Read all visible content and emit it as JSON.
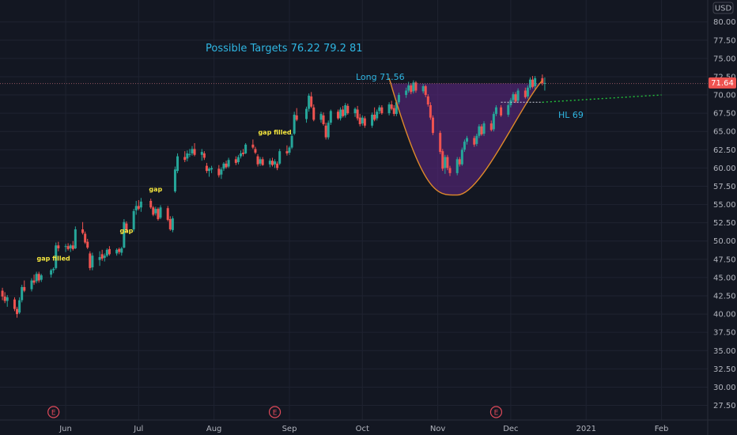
{
  "currency_badge": "USD",
  "price_tag": "71.64",
  "colors": {
    "up": "#26a69a",
    "down": "#ef5350",
    "grid": "#1f2331",
    "cup_fill": "#5b2680",
    "cup_line": "#e08a2a",
    "annotation": "#2fb6e2",
    "gap_label": "#f5e63d",
    "trend": "#23c23b"
  },
  "annotations": {
    "targets": "Possible Targets  76.22  79.2  81",
    "long": "Long  71.56",
    "hl": "HL 69"
  },
  "gap_labels": [
    {
      "text": "gap filled",
      "date": "2020-05-27",
      "price": 47.3
    },
    {
      "text": "gap",
      "date": "2020-06-26",
      "price": 51.1
    },
    {
      "text": "gap",
      "date": "2020-07-08",
      "price": 56.8
    },
    {
      "text": "gap filled",
      "date": "2020-08-26",
      "price": 64.6
    }
  ],
  "earnings_markers": [
    {
      "label": "E",
      "date": "2020-05-27"
    },
    {
      "label": "E",
      "date": "2020-08-26"
    },
    {
      "label": "E",
      "date": "2020-11-25"
    }
  ],
  "chart_data": {
    "type": "candlestick",
    "title": "",
    "xlabel": "",
    "ylabel": "",
    "x_range": [
      "2020-05-05",
      "2021-02-20"
    ],
    "ylim": [
      25.5,
      83
    ],
    "y_ticks": [
      "27.50",
      "30.00",
      "32.50",
      "35.00",
      "37.50",
      "40.00",
      "42.50",
      "45.00",
      "47.50",
      "50.00",
      "52.50",
      "55.00",
      "57.50",
      "60.00",
      "62.50",
      "65.00",
      "67.50",
      "70.00",
      "72.50",
      "75.00",
      "77.50",
      "80.00"
    ],
    "x_ticks": [
      {
        "label": "Jun",
        "date": "2020-06-01"
      },
      {
        "label": "Jul",
        "date": "2020-07-01"
      },
      {
        "label": "Aug",
        "date": "2020-08-01"
      },
      {
        "label": "Sep",
        "date": "2020-09-01"
      },
      {
        "label": "Oct",
        "date": "2020-10-01"
      },
      {
        "label": "Nov",
        "date": "2020-11-01"
      },
      {
        "label": "Dec",
        "date": "2020-12-01"
      },
      {
        "label": "2021",
        "date": "2021-01-01"
      },
      {
        "label": "Feb",
        "date": "2021-02-01"
      }
    ],
    "grid": true,
    "last_price": 71.64,
    "candles": [
      [
        "2020-05-06",
        43.2,
        43.6,
        41.9,
        42.4
      ],
      [
        "2020-05-07",
        42.4,
        43.0,
        41.5,
        41.8
      ],
      [
        "2020-05-08",
        41.8,
        42.6,
        41.0,
        42.3
      ],
      [
        "2020-05-11",
        42.0,
        42.3,
        40.4,
        40.7
      ],
      [
        "2020-05-12",
        40.7,
        41.0,
        39.5,
        40.0
      ],
      [
        "2020-05-13",
        40.2,
        42.3,
        40.0,
        41.9
      ],
      [
        "2020-05-14",
        41.9,
        44.0,
        41.6,
        43.7
      ],
      [
        "2020-05-15",
        43.7,
        44.6,
        43.0,
        43.2
      ],
      [
        "2020-05-18",
        43.4,
        44.9,
        43.1,
        44.6
      ],
      [
        "2020-05-19",
        44.6,
        45.4,
        44.0,
        44.3
      ],
      [
        "2020-05-20",
        44.5,
        45.8,
        44.2,
        45.5
      ],
      [
        "2020-05-21",
        45.5,
        45.8,
        44.3,
        44.6
      ],
      [
        "2020-05-22",
        44.7,
        45.5,
        44.4,
        45.3
      ],
      [
        "2020-05-26",
        45.4,
        46.2,
        45.0,
        46.0
      ],
      [
        "2020-05-27",
        46.0,
        46.4,
        45.6,
        46.2
      ],
      [
        "2020-05-28",
        46.3,
        49.8,
        46.1,
        49.4
      ],
      [
        "2020-05-29",
        49.4,
        49.9,
        48.6,
        49.0
      ],
      [
        "2020-06-01",
        49.2,
        49.6,
        48.5,
        49.3
      ],
      [
        "2020-06-02",
        49.3,
        49.7,
        48.7,
        48.9
      ],
      [
        "2020-06-03",
        49.0,
        49.6,
        48.5,
        49.4
      ],
      [
        "2020-06-04",
        49.4,
        50.0,
        48.7,
        48.9
      ],
      [
        "2020-06-05",
        49.0,
        52.0,
        48.9,
        51.6
      ],
      [
        "2020-06-08",
        51.6,
        52.6,
        50.9,
        51.1
      ],
      [
        "2020-06-09",
        51.0,
        51.3,
        49.6,
        49.8
      ],
      [
        "2020-06-10",
        49.9,
        50.3,
        48.9,
        49.1
      ],
      [
        "2020-06-11",
        48.3,
        48.6,
        46.0,
        46.3
      ],
      [
        "2020-06-12",
        46.4,
        48.4,
        46.0,
        48.0
      ],
      [
        "2020-06-15",
        47.4,
        48.6,
        46.6,
        47.8
      ],
      [
        "2020-06-16",
        48.2,
        48.8,
        47.3,
        47.6
      ],
      [
        "2020-06-17",
        47.7,
        48.3,
        47.2,
        48.0
      ],
      [
        "2020-06-18",
        48.0,
        49.0,
        47.8,
        48.8
      ],
      [
        "2020-06-19",
        48.9,
        49.3,
        48.0,
        48.2
      ],
      [
        "2020-06-22",
        48.3,
        49.0,
        48.0,
        48.8
      ],
      [
        "2020-06-23",
        48.9,
        49.1,
        48.2,
        48.5
      ],
      [
        "2020-06-24",
        48.4,
        49.2,
        48.0,
        49.0
      ],
      [
        "2020-06-25",
        49.1,
        53.0,
        49.0,
        52.6
      ],
      [
        "2020-06-26",
        52.4,
        52.7,
        51.2,
        51.5
      ],
      [
        "2020-06-29",
        51.6,
        54.4,
        51.3,
        54.1
      ],
      [
        "2020-06-30",
        54.2,
        55.5,
        53.6,
        54.8
      ],
      [
        "2020-07-01",
        54.8,
        55.6,
        54.2,
        54.4
      ],
      [
        "2020-07-02",
        54.6,
        55.9,
        54.0,
        55.4
      ],
      [
        "2020-07-06",
        55.5,
        55.8,
        54.4,
        54.6
      ],
      [
        "2020-07-07",
        54.6,
        54.8,
        53.4,
        53.6
      ],
      [
        "2020-07-08",
        53.8,
        54.7,
        53.5,
        54.4
      ],
      [
        "2020-07-09",
        54.4,
        54.6,
        52.8,
        53.0
      ],
      [
        "2020-07-10",
        53.2,
        54.9,
        53.0,
        54.6
      ],
      [
        "2020-07-13",
        54.5,
        54.8,
        52.7,
        52.9
      ],
      [
        "2020-07-14",
        53.0,
        53.4,
        51.4,
        51.6
      ],
      [
        "2020-07-15",
        51.5,
        53.4,
        51.2,
        53.1
      ],
      [
        "2020-07-16",
        56.8,
        60.2,
        56.6,
        59.8
      ],
      [
        "2020-07-17",
        59.6,
        62.0,
        59.3,
        61.6
      ],
      [
        "2020-07-20",
        61.5,
        62.3,
        60.8,
        61.1
      ],
      [
        "2020-07-21",
        61.3,
        62.4,
        60.9,
        62.0
      ],
      [
        "2020-07-22",
        61.8,
        62.6,
        61.5,
        61.9
      ],
      [
        "2020-07-23",
        62.0,
        63.0,
        61.7,
        62.6
      ],
      [
        "2020-07-24",
        62.6,
        63.4,
        61.6,
        61.8
      ],
      [
        "2020-07-27",
        61.8,
        62.6,
        61.0,
        62.2
      ],
      [
        "2020-07-28",
        62.0,
        62.3,
        61.1,
        61.4
      ],
      [
        "2020-07-29",
        60.3,
        60.7,
        59.3,
        59.6
      ],
      [
        "2020-07-30",
        59.6,
        60.1,
        58.8,
        59.9
      ],
      [
        "2020-07-31",
        59.8,
        60.3,
        59.3,
        60.0
      ],
      [
        "2020-08-03",
        59.9,
        60.4,
        58.7,
        59.0
      ],
      [
        "2020-08-04",
        59.1,
        60.1,
        58.5,
        59.8
      ],
      [
        "2020-08-05",
        59.9,
        60.8,
        59.6,
        60.6
      ],
      [
        "2020-08-06",
        60.6,
        61.0,
        59.9,
        60.1
      ],
      [
        "2020-08-07",
        60.2,
        61.4,
        60.0,
        61.1
      ],
      [
        "2020-08-10",
        61.2,
        61.6,
        60.4,
        60.7
      ],
      [
        "2020-08-11",
        60.8,
        61.8,
        60.5,
        61.5
      ],
      [
        "2020-08-12",
        61.6,
        62.4,
        61.3,
        62.0
      ],
      [
        "2020-08-13",
        62.1,
        62.6,
        61.6,
        61.9
      ],
      [
        "2020-08-14",
        62.0,
        63.4,
        61.9,
        63.2
      ],
      [
        "2020-08-17",
        63.2,
        63.9,
        62.6,
        62.8
      ],
      [
        "2020-08-18",
        62.6,
        62.9,
        61.9,
        62.1
      ],
      [
        "2020-08-19",
        61.6,
        61.9,
        60.2,
        60.5
      ],
      [
        "2020-08-20",
        60.6,
        61.5,
        60.3,
        61.2
      ],
      [
        "2020-08-21",
        61.2,
        61.5,
        60.3,
        60.4
      ],
      [
        "2020-08-24",
        60.5,
        61.3,
        60.1,
        61.0
      ],
      [
        "2020-08-25",
        61.0,
        61.4,
        60.2,
        60.4
      ],
      [
        "2020-08-26",
        60.5,
        61.2,
        60.0,
        60.9
      ],
      [
        "2020-08-27",
        60.6,
        60.9,
        59.7,
        60.0
      ],
      [
        "2020-08-28",
        60.6,
        62.6,
        60.4,
        62.3
      ],
      [
        "2020-08-31",
        62.3,
        63.1,
        61.7,
        62.0
      ],
      [
        "2020-09-01",
        62.1,
        63.0,
        61.8,
        62.8
      ],
      [
        "2020-09-02",
        62.8,
        64.7,
        62.6,
        64.4
      ],
      [
        "2020-09-03",
        64.7,
        67.7,
        64.5,
        67.3
      ],
      [
        "2020-09-04",
        67.2,
        68.2,
        66.4,
        66.6
      ],
      [
        "2020-09-08",
        66.7,
        68.4,
        66.2,
        68.1
      ],
      [
        "2020-09-09",
        68.1,
        70.2,
        67.7,
        69.9
      ],
      [
        "2020-09-10",
        69.8,
        70.4,
        68.2,
        68.4
      ],
      [
        "2020-09-11",
        68.3,
        68.7,
        66.4,
        66.6
      ],
      [
        "2020-09-14",
        66.6,
        67.7,
        66.2,
        67.4
      ],
      [
        "2020-09-15",
        67.2,
        67.6,
        65.8,
        66.0
      ],
      [
        "2020-09-16",
        65.8,
        66.2,
        63.9,
        64.2
      ],
      [
        "2020-09-17",
        64.2,
        66.5,
        63.9,
        66.2
      ],
      [
        "2020-09-18",
        66.2,
        68.0,
        65.9,
        67.8
      ],
      [
        "2020-09-21",
        67.7,
        68.0,
        66.6,
        66.8
      ],
      [
        "2020-09-22",
        66.8,
        68.3,
        66.5,
        68.0
      ],
      [
        "2020-09-23",
        68.0,
        68.5,
        66.9,
        67.1
      ],
      [
        "2020-09-24",
        67.2,
        68.9,
        66.9,
        68.6
      ],
      [
        "2020-09-25",
        68.5,
        68.8,
        67.3,
        67.5
      ],
      [
        "2020-09-28",
        67.5,
        68.3,
        67.0,
        68.1
      ],
      [
        "2020-09-29",
        68.0,
        68.5,
        66.5,
        66.8
      ],
      [
        "2020-09-30",
        66.9,
        67.4,
        65.7,
        66.0
      ],
      [
        "2020-10-01",
        66.1,
        67.2,
        65.8,
        66.9
      ],
      [
        "2020-10-02",
        66.8,
        67.1,
        65.5,
        65.8
      ],
      [
        "2020-10-05",
        65.8,
        67.6,
        65.5,
        67.3
      ],
      [
        "2020-10-06",
        67.3,
        68.3,
        66.4,
        66.6
      ],
      [
        "2020-10-07",
        66.8,
        68.0,
        66.5,
        67.7
      ],
      [
        "2020-10-08",
        67.8,
        68.6,
        67.4,
        68.3
      ],
      [
        "2020-10-09",
        68.3,
        68.6,
        67.3,
        67.5
      ],
      [
        "2020-10-12",
        67.5,
        69.0,
        67.2,
        68.7
      ],
      [
        "2020-10-13",
        68.7,
        69.2,
        67.9,
        68.1
      ],
      [
        "2020-10-14",
        68.2,
        68.6,
        67.1,
        67.4
      ],
      [
        "2020-10-15",
        67.4,
        69.3,
        67.1,
        69.0
      ],
      [
        "2020-10-16",
        69.0,
        70.3,
        68.7,
        70.0
      ],
      [
        "2020-10-19",
        70.0,
        71.0,
        69.6,
        70.6
      ],
      [
        "2020-10-20",
        70.6,
        71.8,
        70.3,
        71.3
      ],
      [
        "2020-10-21",
        71.3,
        71.6,
        70.1,
        70.4
      ],
      [
        "2020-10-22",
        70.5,
        72.0,
        70.2,
        71.7
      ],
      [
        "2020-10-23",
        71.7,
        71.9,
        70.3,
        70.6
      ],
      [
        "2020-10-26",
        70.5,
        71.5,
        70.2,
        71.2
      ],
      [
        "2020-10-27",
        71.2,
        71.4,
        69.7,
        70.0
      ],
      [
        "2020-10-28",
        69.8,
        70.1,
        68.4,
        68.7
      ],
      [
        "2020-10-29",
        68.6,
        69.0,
        66.6,
        66.9
      ],
      [
        "2020-10-30",
        66.9,
        67.2,
        64.5,
        64.8
      ],
      [
        "2020-11-02",
        64.8,
        65.1,
        61.9,
        62.2
      ],
      [
        "2020-11-03",
        62.3,
        62.6,
        59.6,
        59.9
      ],
      [
        "2020-11-04",
        60.0,
        61.8,
        59.2,
        61.5
      ],
      [
        "2020-11-05",
        61.5,
        61.8,
        59.7,
        60.0
      ],
      [
        "2020-11-06",
        60.0,
        60.3,
        58.9,
        59.3
      ],
      [
        "2020-11-09",
        59.3,
        61.5,
        59.0,
        61.2
      ],
      [
        "2020-11-10",
        61.2,
        61.5,
        60.2,
        60.5
      ],
      [
        "2020-11-11",
        60.5,
        62.8,
        60.3,
        62.5
      ],
      [
        "2020-11-12",
        62.5,
        63.9,
        62.2,
        63.6
      ],
      [
        "2020-11-13",
        63.6,
        64.4,
        63.2,
        64.1
      ],
      [
        "2020-11-16",
        64.1,
        64.4,
        62.9,
        63.2
      ],
      [
        "2020-11-17",
        63.3,
        64.7,
        63.0,
        64.4
      ],
      [
        "2020-11-18",
        64.4,
        66.0,
        64.1,
        65.7
      ],
      [
        "2020-11-19",
        65.7,
        66.0,
        64.4,
        64.6
      ],
      [
        "2020-11-20",
        64.7,
        66.4,
        64.4,
        66.1
      ],
      [
        "2020-11-23",
        66.1,
        66.5,
        65.0,
        65.2
      ],
      [
        "2020-11-24",
        65.3,
        67.7,
        65.0,
        67.4
      ],
      [
        "2020-11-25",
        67.4,
        68.6,
        67.1,
        68.3
      ],
      [
        "2020-11-27",
        68.3,
        68.6,
        67.0,
        67.2
      ],
      [
        "2020-11-30",
        67.3,
        68.9,
        67.0,
        68.6
      ],
      [
        "2020-12-01",
        68.6,
        69.6,
        68.3,
        69.3
      ],
      [
        "2020-12-02",
        69.3,
        70.4,
        69.0,
        70.1
      ],
      [
        "2020-12-03",
        70.1,
        70.4,
        68.9,
        69.1
      ],
      [
        "2020-12-04",
        69.2,
        70.9,
        68.9,
        70.6
      ],
      [
        "2020-12-07",
        70.6,
        71.0,
        69.5,
        69.7
      ],
      [
        "2020-12-08",
        69.8,
        71.3,
        69.5,
        71.0
      ],
      [
        "2020-12-09",
        71.0,
        72.4,
        70.7,
        72.1
      ],
      [
        "2020-12-10",
        72.1,
        72.6,
        70.9,
        71.1
      ],
      [
        "2020-12-11",
        71.2,
        72.6,
        70.8,
        72.3
      ],
      [
        "2020-12-14",
        72.3,
        72.8,
        71.3,
        71.6
      ],
      [
        "2020-12-15",
        71.6,
        72.4,
        70.6,
        71.64
      ]
    ],
    "overlays": {
      "long_line": {
        "price": 71.56,
        "from": "2020-05-05",
        "to": "2020-12-17"
      },
      "cup": {
        "left": [
          "2020-10-12",
          72.3
        ],
        "bottom": [
          "2020-11-09",
          56.3
        ],
        "right": [
          "2020-12-14",
          72.0
        ]
      },
      "hl_support": {
        "from": [
          "2020-11-27",
          69.0
        ],
        "to": [
          "2020-12-14",
          69.0
        ]
      },
      "trend_extension": {
        "from": [
          "2020-12-14",
          69.0
        ],
        "to": [
          "2021-02-01",
          70.0
        ]
      }
    }
  }
}
